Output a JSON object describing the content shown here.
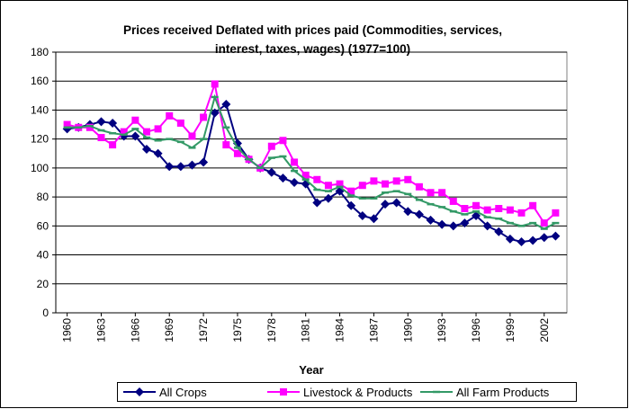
{
  "chart_data": {
    "type": "line",
    "title": "Prices received Deflated with prices paid (Commodities, services, interest, taxes, wages)  (1977=100)",
    "xlabel": "Year",
    "x": [
      1960,
      1961,
      1962,
      1963,
      1964,
      1965,
      1966,
      1967,
      1968,
      1969,
      1970,
      1971,
      1972,
      1973,
      1974,
      1975,
      1976,
      1977,
      1978,
      1979,
      1980,
      1981,
      1982,
      1983,
      1984,
      1985,
      1986,
      1987,
      1988,
      1989,
      1990,
      1991,
      1992,
      1993,
      1994,
      1995,
      1996,
      1997,
      1998,
      1999,
      2000,
      2001,
      2002,
      2003
    ],
    "xlim": [
      1959,
      2004
    ],
    "xticks": [
      1960,
      1963,
      1966,
      1969,
      1972,
      1975,
      1978,
      1981,
      1984,
      1987,
      1990,
      1993,
      1996,
      1999,
      2002
    ],
    "ylim": [
      0,
      180
    ],
    "yticks": [
      0,
      20,
      40,
      60,
      80,
      100,
      120,
      140,
      160,
      180
    ],
    "grid": true,
    "legend": "bottom",
    "series": [
      {
        "name": "All Crops",
        "color": "#000080",
        "marker": "diamond",
        "values": [
          127,
          128,
          130,
          132,
          131,
          122,
          122,
          113,
          110,
          101,
          101,
          102,
          104,
          138,
          144,
          117,
          106,
          100,
          97,
          93,
          90,
          89,
          76,
          79,
          84,
          74,
          67,
          65,
          75,
          76,
          70,
          68,
          64,
          61,
          60,
          62,
          67,
          60,
          56,
          51,
          49,
          50,
          52,
          53
        ]
      },
      {
        "name": "Livestock & Products",
        "color": "#ff00ff",
        "marker": "square",
        "values": [
          130,
          128,
          128,
          121,
          116,
          125,
          133,
          125,
          127,
          136,
          131,
          122,
          135,
          158,
          116,
          110,
          106,
          100,
          115,
          119,
          104,
          95,
          92,
          88,
          89,
          84,
          88,
          91,
          89,
          91,
          92,
          87,
          83,
          83,
          77,
          72,
          74,
          71,
          72,
          71,
          69,
          74,
          62,
          69
        ]
      },
      {
        "name": "All Farm Products",
        "color": "#339966",
        "marker": "dash",
        "values": [
          128,
          128,
          129,
          126,
          124,
          123,
          127,
          121,
          119,
          120,
          118,
          114,
          120,
          149,
          128,
          114,
          106,
          100,
          107,
          108,
          98,
          92,
          85,
          84,
          87,
          81,
          79,
          79,
          83,
          84,
          82,
          78,
          75,
          73,
          70,
          68,
          70,
          66,
          65,
          62,
          60,
          62,
          58,
          62
        ]
      }
    ]
  }
}
